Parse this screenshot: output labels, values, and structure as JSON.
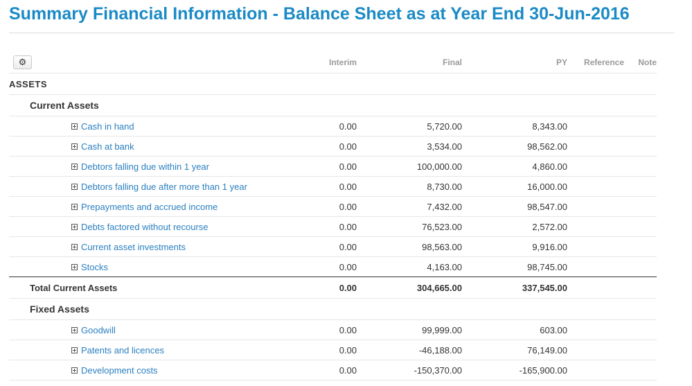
{
  "page": {
    "title": "Summary Financial Information - Balance Sheet as at Year End 30-Jun-2016"
  },
  "columns": {
    "interim": "Interim",
    "final": "Final",
    "py": "PY",
    "reference": "Reference",
    "note": "Note"
  },
  "toolbar": {
    "settings_icon": "gear-icon"
  },
  "assets_label": "ASSETS",
  "current_assets": {
    "label": "Current Assets",
    "items": [
      {
        "label": "Cash in hand",
        "interim": "0.00",
        "final": "5,720.00",
        "py": "8,343.00"
      },
      {
        "label": "Cash at bank",
        "interim": "0.00",
        "final": "3,534.00",
        "py": "98,562.00"
      },
      {
        "label": "Debtors falling due within 1 year",
        "interim": "0.00",
        "final": "100,000.00",
        "py": "4,860.00"
      },
      {
        "label": "Debtors falling due after more than 1 year",
        "interim": "0.00",
        "final": "8,730.00",
        "py": "16,000.00"
      },
      {
        "label": "Prepayments and accrued income",
        "interim": "0.00",
        "final": "7,432.00",
        "py": "98,547.00"
      },
      {
        "label": "Debts factored without recourse",
        "interim": "0.00",
        "final": "76,523.00",
        "py": "2,572.00"
      },
      {
        "label": "Current asset investments",
        "interim": "0.00",
        "final": "98,563.00",
        "py": "9,916.00"
      },
      {
        "label": "Stocks",
        "interim": "0.00",
        "final": "4,163.00",
        "py": "98,745.00"
      }
    ],
    "total": {
      "label": "Total Current Assets",
      "interim": "0.00",
      "final": "304,665.00",
      "py": "337,545.00"
    }
  },
  "fixed_assets": {
    "label": "Fixed Assets",
    "items": [
      {
        "label": "Goodwill",
        "interim": "0.00",
        "final": "99,999.00",
        "py": "603.00"
      },
      {
        "label": "Patents and licences",
        "interim": "0.00",
        "final": "-46,188.00",
        "py": "76,149.00"
      },
      {
        "label": "Development costs",
        "interim": "0.00",
        "final": "-150,370.00",
        "py": "-165,900.00"
      }
    ]
  }
}
